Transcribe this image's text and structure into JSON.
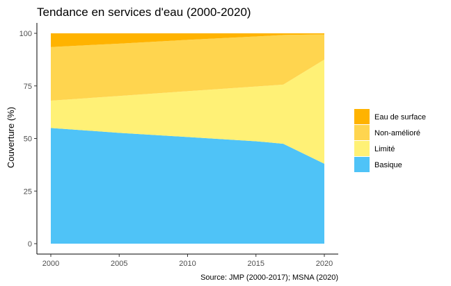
{
  "chart_data": {
    "type": "area",
    "stacked": true,
    "title": "Tendance en services d'eau (2000-2020)",
    "xlabel": "",
    "ylabel": "Couverture (%)",
    "caption": "Source: JMP (2000-2017); MSNA (2020)",
    "x": [
      2000,
      2005,
      2010,
      2015,
      2017,
      2020
    ],
    "xticks": [
      "2000",
      "2005",
      "2010",
      "2015",
      "2020"
    ],
    "xlim": [
      2000,
      2020
    ],
    "ylim": [
      0,
      100
    ],
    "yticks": [
      "0",
      "25",
      "50",
      "75",
      "100"
    ],
    "grid": false,
    "legend_position": "right",
    "series": [
      {
        "name": "Basique",
        "color": "#4FC3F7",
        "values": [
          55,
          52.7,
          50.7,
          48.7,
          47.5,
          38
        ]
      },
      {
        "name": "Limité",
        "color": "#FFF176",
        "values": [
          13,
          17.5,
          21.8,
          26,
          28.1,
          49.5
        ]
      },
      {
        "name": "Non-amélioré",
        "color": "#FFD54F",
        "values": [
          25.5,
          24.9,
          24.4,
          23.8,
          23.6,
          12
        ]
      },
      {
        "name": "Eau de surface",
        "color": "#FFB300",
        "values": [
          6.5,
          4.9,
          3.1,
          1.5,
          0.8,
          0.5
        ]
      }
    ],
    "legend_order": [
      "Eau de surface",
      "Non-amélioré",
      "Limité",
      "Basique"
    ]
  }
}
